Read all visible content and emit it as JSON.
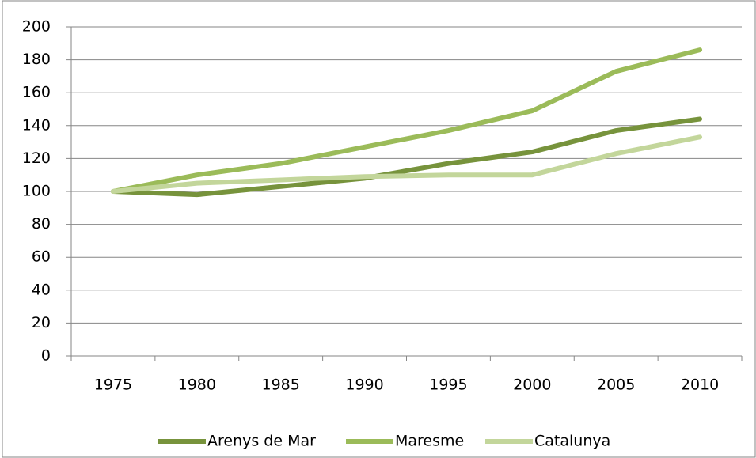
{
  "chart_data": {
    "type": "line",
    "categories": [
      "1975",
      "1980",
      "1985",
      "1990",
      "1995",
      "2000",
      "2005",
      "2010"
    ],
    "series": [
      {
        "name": "Arenys de Mar",
        "color": "#77933c",
        "values": [
          100,
          98,
          103,
          108,
          117,
          124,
          137,
          144
        ]
      },
      {
        "name": "Maresme",
        "color": "#9bbb59",
        "values": [
          100,
          110,
          117,
          127,
          137,
          149,
          173,
          186
        ]
      },
      {
        "name": "Catalunya",
        "color": "#c3d69b",
        "values": [
          100,
          105,
          107,
          109,
          110,
          110,
          123,
          133
        ]
      }
    ],
    "ylim": [
      0,
      200
    ],
    "yticks": [
      0,
      20,
      40,
      60,
      80,
      100,
      120,
      140,
      160,
      180,
      200
    ],
    "grid": true,
    "legend": "bottom"
  }
}
